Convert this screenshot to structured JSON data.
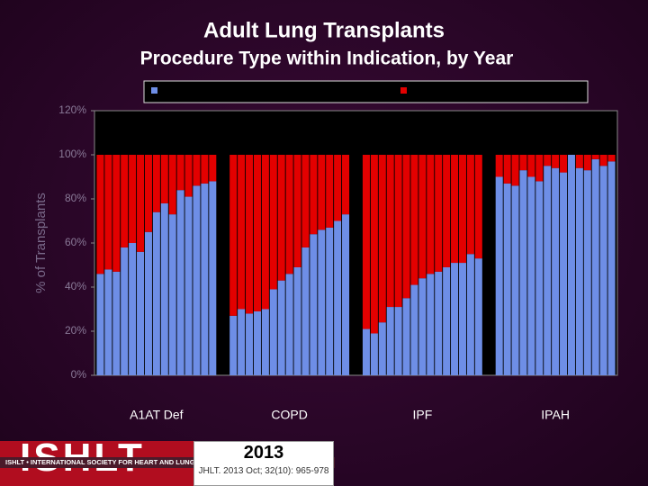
{
  "chart_data": {
    "type": "bar",
    "stacked": true,
    "title": "Adult Lung Transplants",
    "subtitle": "Procedure Type within Indication, by Year",
    "y_label": "% of Transplants",
    "ylim": [
      0,
      120
    ],
    "yticks": [
      {
        "value": 0,
        "label": "0%"
      },
      {
        "value": 20,
        "label": "20%"
      },
      {
        "value": 40,
        "label": "40%"
      },
      {
        "value": 60,
        "label": "60%"
      },
      {
        "value": 80,
        "label": "80%"
      },
      {
        "value": 100,
        "label": "100%"
      },
      {
        "value": 120,
        "label": "120%"
      }
    ],
    "grid": false,
    "legend": "top",
    "groups": [
      {
        "label": "A1AT Def",
        "categories": [
          null,
          null,
          null,
          null,
          null,
          null,
          null,
          null,
          null,
          null,
          null,
          null,
          null,
          null,
          null
        ],
        "series": [
          {
            "color": "#6e8ee6",
            "values": [
              46,
              48,
              47,
              58,
              60,
              56,
              65,
              74,
              78,
              73,
              84,
              81,
              86,
              87,
              88
            ]
          },
          {
            "color": "#e30000",
            "values": [
              54,
              52,
              53,
              42,
              40,
              44,
              35,
              26,
              22,
              27,
              16,
              19,
              14,
              13,
              12
            ]
          }
        ]
      },
      {
        "label": "COPD",
        "categories": [
          null,
          null,
          null,
          null,
          null,
          null,
          null,
          null,
          null,
          null,
          null,
          null,
          null,
          null,
          null
        ],
        "series": [
          {
            "color": "#6e8ee6",
            "values": [
              27,
              30,
              28,
              29,
              30,
              39,
              43,
              46,
              49,
              58,
              64,
              66,
              67,
              70,
              73
            ]
          },
          {
            "color": "#e30000",
            "values": [
              73,
              70,
              72,
              71,
              70,
              61,
              57,
              54,
              51,
              42,
              36,
              34,
              33,
              30,
              27
            ]
          }
        ]
      },
      {
        "label": "IPF",
        "categories": [
          null,
          null,
          null,
          null,
          null,
          null,
          null,
          null,
          null,
          null,
          null,
          null,
          null,
          null,
          null
        ],
        "series": [
          {
            "color": "#6e8ee6",
            "values": [
              21,
              19,
              24,
              31,
              31,
              35,
              41,
              44,
              46,
              47,
              49,
              51,
              51,
              55,
              53
            ]
          },
          {
            "color": "#e30000",
            "values": [
              79,
              81,
              76,
              69,
              69,
              65,
              59,
              56,
              54,
              53,
              51,
              49,
              49,
              45,
              47
            ]
          }
        ]
      },
      {
        "label": "IPAH",
        "categories": [
          null,
          null,
          null,
          null,
          null,
          null,
          null,
          null,
          null,
          null,
          null,
          null,
          null,
          null,
          null
        ],
        "series": [
          {
            "color": "#6e8ee6",
            "values": [
              90,
              87,
              86,
              93,
              90,
              88,
              95,
              94,
              92,
              100,
              94,
              93,
              98,
              95,
              97
            ]
          },
          {
            "color": "#e30000",
            "values": [
              10,
              13,
              14,
              7,
              10,
              12,
              5,
              6,
              8,
              0,
              6,
              7,
              2,
              5,
              3
            ]
          }
        ]
      }
    ]
  },
  "footer": {
    "logo": "ISHLT",
    "society": "ISHLT • INTERNATIONAL SOCIETY FOR HEART AND LUNG TRANSPLANTATION",
    "year": "2013",
    "citation": "JHLT. 2013 Oct; 32(10): 965-978"
  }
}
